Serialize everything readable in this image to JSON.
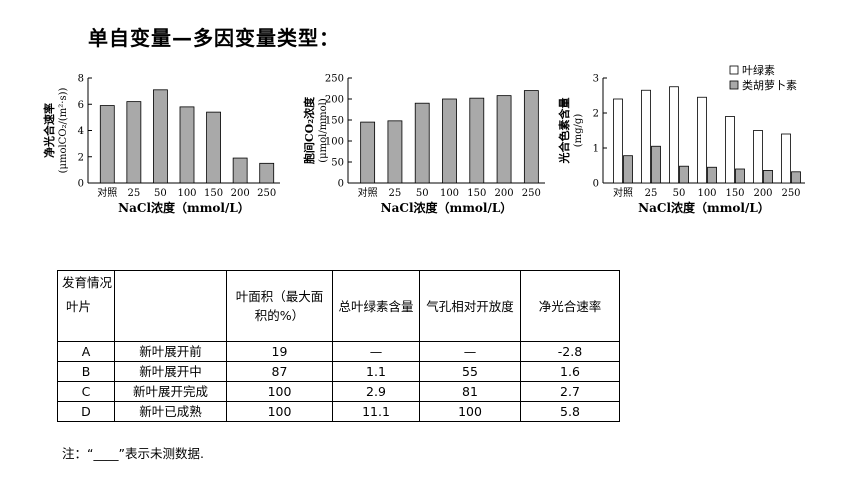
{
  "page_title": "单自变量—多因变量类型：",
  "chart_data": [
    {
      "type": "bar",
      "ylabel": "净光合速率",
      "yunit": "(μmolCO₂/(m²·s))",
      "xlabel": "NaCl浓度（mmol/L）",
      "categories": [
        "对照",
        "25",
        "50",
        "100",
        "150",
        "200",
        "250"
      ],
      "values": [
        5.9,
        6.2,
        7.1,
        5.8,
        5.4,
        1.9,
        1.5
      ],
      "ylim": [
        0,
        8
      ],
      "yticks": [
        "0",
        "2",
        "4",
        "6",
        "8"
      ],
      "bar_color": "#a9a9a9"
    },
    {
      "type": "bar",
      "ylabel": "胞间CO₂浓度",
      "yunit": "(μmol/mmol)",
      "xlabel": "NaCl浓度（mmol/L）",
      "categories": [
        "对照",
        "25",
        "50",
        "100",
        "150",
        "200",
        "250"
      ],
      "values": [
        145,
        148,
        190,
        200,
        202,
        208,
        220
      ],
      "ylim": [
        0,
        250
      ],
      "yticks": [
        "0",
        "50",
        "100",
        "150",
        "200",
        "250"
      ],
      "bar_color": "#a9a9a9"
    },
    {
      "type": "bar",
      "ylabel": "光合色素含量",
      "yunit": "(mg/g)",
      "xlabel": "NaCl浓度（mmol/L）",
      "categories": [
        "对照",
        "25",
        "50",
        "100",
        "150",
        "200",
        "250"
      ],
      "ylim": [
        0,
        3
      ],
      "yticks": [
        "0",
        "1",
        "2",
        "3"
      ],
      "legend_position": "top-right",
      "series": [
        {
          "name": "叶绿素",
          "values": [
            2.4,
            2.65,
            2.75,
            2.45,
            1.9,
            1.5,
            1.4
          ],
          "color": "#ffffff"
        },
        {
          "name": "类胡萝卜素",
          "values": [
            0.78,
            1.05,
            0.48,
            0.45,
            0.4,
            0.36,
            0.32
          ],
          "color": "#a9a9a9"
        }
      ]
    }
  ],
  "table": {
    "corner_top": "发育情况",
    "corner_left": "叶片",
    "headers": [
      "叶面积（最大面积的%）",
      "总叶绿素含量",
      "气孔相对开放度",
      "净光合速率"
    ],
    "rows": [
      [
        "A",
        "新叶展开前",
        "19",
        "—",
        "—",
        "-2.8"
      ],
      [
        "B",
        "新叶展开中",
        "87",
        "1.1",
        "55",
        "1.6"
      ],
      [
        "C",
        "新叶展开完成",
        "100",
        "2.9",
        "81",
        "2.7"
      ],
      [
        "D",
        "新叶已成熟",
        "100",
        "11.1",
        "100",
        "5.8"
      ]
    ],
    "note": "注：“____”表示未测数据."
  }
}
